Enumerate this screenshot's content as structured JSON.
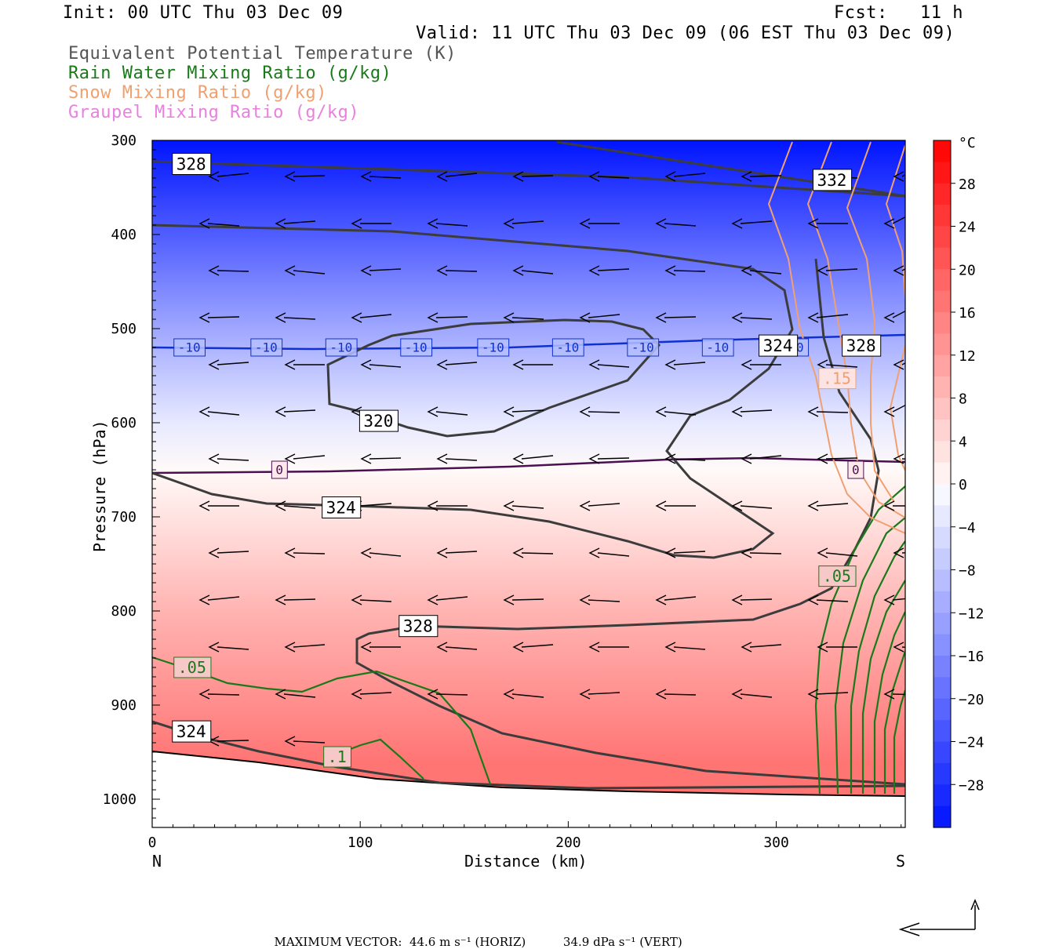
{
  "header": {
    "init": "Init: 00 UTC Thu 03 Dec 09",
    "fcst": "Fcst:   11 h",
    "valid": "Valid: 11 UTC Thu 03 Dec 09 (06 EST Thu 03 Dec 09)",
    "fields": [
      {
        "label": "Equivalent Potential Temperature (K)",
        "color": "#555555"
      },
      {
        "label": "Rain Water Mixing Ratio (g/kg)",
        "color": "#1a7a1a"
      },
      {
        "label": "Snow Mixing Ratio (g/kg)",
        "color": "#f0a070"
      },
      {
        "label": "Graupel Mixing Ratio (g/kg)",
        "color": "#e880e0"
      }
    ]
  },
  "footer": {
    "max_label": "MAXIMUM VECTOR:",
    "horiz": "44.6 m s⁻¹ (HORIZ)",
    "vert": "34.9 dPa s⁻¹ (VERT)"
  },
  "chart_data": {
    "type": "heatmap",
    "xlabel": "Distance (km)",
    "ylabel": "Pressure (hPa)",
    "xlim": [
      0,
      362
    ],
    "ylim": [
      1030,
      300
    ],
    "x_ticks": [
      "0",
      "100",
      "200",
      "300"
    ],
    "x_tick_values": [
      0,
      100,
      200,
      300
    ],
    "x_end_labels": {
      "left": "N",
      "right": "S"
    },
    "y_ticks": [
      "300",
      "400",
      "500",
      "600",
      "700",
      "800",
      "900",
      "1000"
    ],
    "y_tick_values": [
      300,
      400,
      500,
      600,
      700,
      800,
      900,
      1000
    ],
    "colorbar": {
      "unit": "°C",
      "ticks": [
        "28",
        "24",
        "20",
        "16",
        "12",
        "8",
        "4",
        "0",
        "−4",
        "−8",
        "−12",
        "−16",
        "−20",
        "−24",
        "−28"
      ],
      "range": [
        -32,
        32
      ]
    },
    "temperature_profile": {
      "pressure": [
        300,
        400,
        500,
        600,
        650,
        700,
        800,
        900,
        960
      ],
      "temp_c": [
        -32,
        -22,
        -12,
        -3,
        0,
        3,
        9,
        14,
        17
      ]
    },
    "isotherm_labels": [
      {
        "value": "-10",
        "p": 520,
        "x": [
          18,
          55,
          91,
          127,
          164,
          200,
          236,
          272,
          308
        ]
      },
      {
        "value": "0",
        "p": 650,
        "x": [
          65,
          342
        ]
      }
    ],
    "theta_e_labels": [
      {
        "value": "328",
        "x": 18,
        "p": 325
      },
      {
        "value": "332",
        "x": 326,
        "p": 342
      },
      {
        "value": "320",
        "x": 108,
        "p": 598
      },
      {
        "value": "324",
        "x": 90,
        "p": 690
      },
      {
        "value": "328",
        "x": 127,
        "p": 816
      },
      {
        "value": "324",
        "x": 18,
        "p": 928
      },
      {
        "value": "324",
        "x": 300,
        "p": 518
      },
      {
        "value": "328",
        "x": 340,
        "p": 518
      }
    ],
    "rain_labels": [
      {
        "value": ".05",
        "x": 18,
        "p": 860
      },
      {
        "value": ".1",
        "x": 90,
        "p": 955
      },
      {
        "value": ".05",
        "x": 328,
        "p": 763
      }
    ],
    "snow_labels": [
      {
        "value": ".15",
        "x": 328,
        "p": 553
      }
    ],
    "max_vector": {
      "horiz_ms": 44.6,
      "vert_dpas": 34.9
    }
  }
}
